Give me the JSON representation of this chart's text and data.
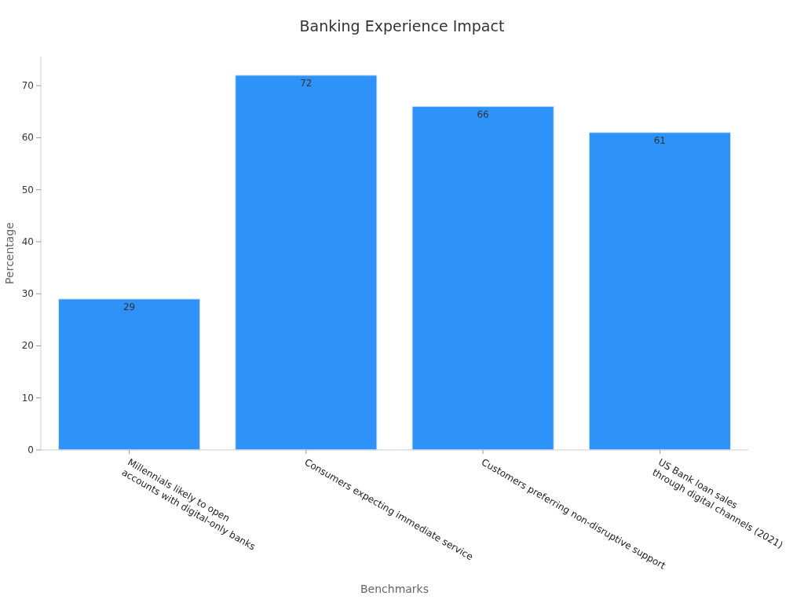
{
  "chart_data": {
    "type": "bar",
    "title": "Banking Experience Impact",
    "xlabel": "Benchmarks",
    "ylabel": "Percentage",
    "categories": [
      "Millennials likely to open\naccounts with digital-only banks",
      "Consumers expecting immediate service",
      "Customers preferring non-disruptive support",
      "US Bank loan sales\nthrough digital channels (2021)"
    ],
    "values": [
      29,
      72,
      66,
      61
    ],
    "color": "#2e93f8",
    "ylim": [
      0,
      75.6
    ],
    "yticks": [
      0,
      10,
      20,
      30,
      40,
      50,
      60,
      70
    ],
    "data_labels": true,
    "grid": false
  }
}
